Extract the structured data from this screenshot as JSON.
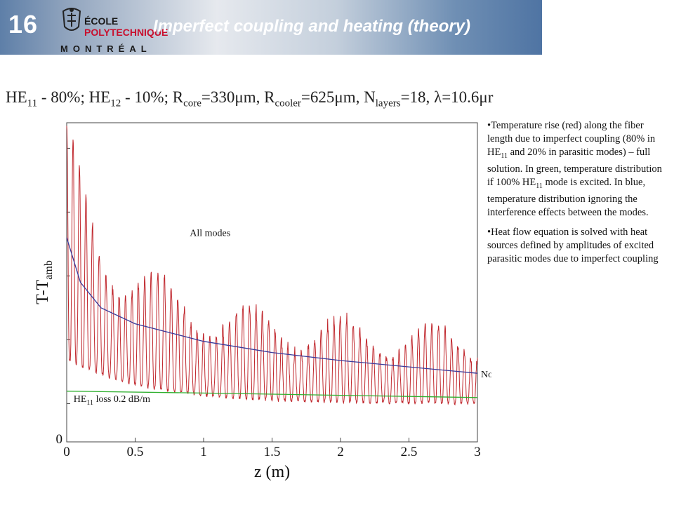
{
  "header": {
    "slide_number": "16",
    "title": "Imperfect coupling and heating (theory)",
    "logo": {
      "line1": "ÉCOLE",
      "line2": "POLYTECHNIQUE",
      "line3": "MONTRÉAL",
      "icon": "crest-icon"
    },
    "colors": {
      "banner_start": "#5e7fa8",
      "banner_end": "#4f74a3"
    }
  },
  "params": {
    "he11": "HE",
    "he11_sub": "11",
    "he11_val": " - 80%; ",
    "he12": "HE",
    "he12_sub": "12",
    "he12_val": " - 10%; ",
    "rcore": "R",
    "rcore_sub": "core",
    "rcore_val": "=330μm, ",
    "rcool": "R",
    "rcool_sub": "cooler",
    "rcool_val": "=625μm, ",
    "nlay": "N",
    "nlay_sub": "layers",
    "nlay_val": "=18, ",
    "lambda": "λ=10.6μr"
  },
  "chart_data": {
    "type": "line",
    "title": "",
    "xlabel": "z (m)",
    "ylabel_main": "T-T",
    "ylabel_sub": "amb",
    "xlim": [
      0,
      3
    ],
    "x_ticks": [
      "0",
      "0.5",
      "1",
      "1.5",
      "2",
      "2.5",
      "3"
    ],
    "y_ticks": [
      "0"
    ],
    "annotations": {
      "all_modes": "All modes",
      "no_interf": "No interf.",
      "he11_loss_main": "HE",
      "he11_loss_sub": "11",
      "he11_loss_rest": " loss 0.2 dB/m"
    },
    "series": [
      {
        "name": "All modes",
        "color": "#c0272d",
        "note": "oscillating full solution decaying from peak near z≈0.05 to about a third of the axis height at z=3"
      },
      {
        "name": "No interf.",
        "color": "#3a3a9a",
        "x": [
          0,
          0.05,
          0.1,
          0.25,
          0.5,
          1,
          1.5,
          2,
          2.5,
          3
        ],
        "y": [
          0.64,
          0.57,
          0.5,
          0.42,
          0.37,
          0.315,
          0.28,
          0.255,
          0.235,
          0.215
        ]
      },
      {
        "name": "HE11 loss 0.2 dB/m",
        "color": "#2fb02f",
        "x": [
          0,
          1,
          2,
          3
        ],
        "y": [
          0.159,
          0.153,
          0.146,
          0.139
        ]
      }
    ],
    "grid": false
  },
  "bullets": [
    {
      "parts": [
        {
          "t": "•Temperature rise (red) along the fiber length due to imperfect coupling (80% in HE"
        },
        {
          "t": "11",
          "sub": true
        },
        {
          "t": " and 20% in parasitic modes) – full solution. In green, temperature distribution if 100% HE"
        },
        {
          "t": "11",
          "sub": true
        },
        {
          "t": " mode is excited. In blue, temperature distribution ignoring the interference effects between the modes."
        }
      ]
    },
    {
      "parts": [
        {
          "t": "•Heat flow equation is solved with heat sources defined by amplitudes of excited parasitic modes due to imperfect coupling"
        }
      ]
    }
  ]
}
